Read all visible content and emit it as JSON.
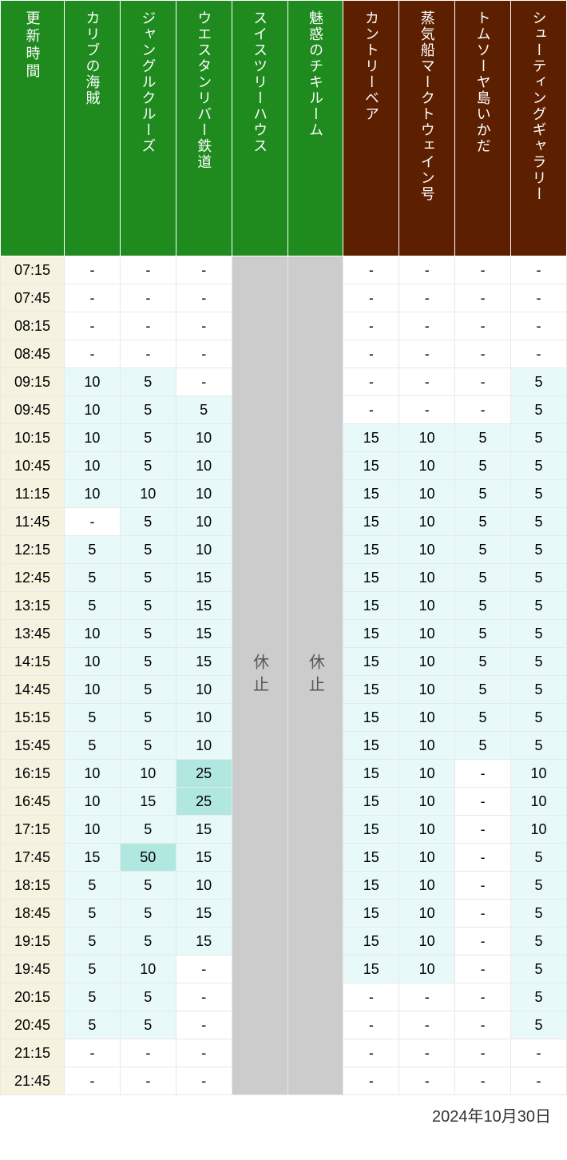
{
  "type": "table",
  "date_label": "2024年10月30日",
  "colors": {
    "green_header": "#1f8b1f",
    "brown_header": "#5c1f00",
    "time_bg": "#f5f3e0",
    "closed_bg": "#cccccc",
    "data_white": "#ffffff",
    "data_light": "#e8f9f9",
    "data_medium": "#b0e8e0",
    "border": "#e8e8e8"
  },
  "headers": [
    {
      "label": "更新時間",
      "color": "green",
      "is_time": true
    },
    {
      "label": "カリブの海賊",
      "color": "green"
    },
    {
      "label": "ジャングルクルーズ",
      "color": "green"
    },
    {
      "label": "ウエスタンリバー鉄道",
      "color": "green"
    },
    {
      "label": "スイスツリーハウス",
      "color": "green"
    },
    {
      "label": "魅惑のチキルーム",
      "color": "green"
    },
    {
      "label": "カントリーベア",
      "color": "brown"
    },
    {
      "label": "蒸気船マークトウェイン号",
      "color": "brown"
    },
    {
      "label": "トムソーヤ島いかだ",
      "color": "brown"
    },
    {
      "label": "シューティングギャラリー",
      "color": "brown"
    }
  ],
  "closed_label": "休止",
  "closed_columns": [
    4,
    5
  ],
  "times": [
    "07:15",
    "07:45",
    "08:15",
    "08:45",
    "09:15",
    "09:45",
    "10:15",
    "10:45",
    "11:15",
    "11:45",
    "12:15",
    "12:45",
    "13:15",
    "13:45",
    "14:15",
    "14:45",
    "15:15",
    "15:45",
    "16:15",
    "16:45",
    "17:15",
    "17:45",
    "18:15",
    "18:45",
    "19:15",
    "19:45",
    "20:15",
    "20:45",
    "21:15",
    "21:45"
  ],
  "data": [
    [
      "-",
      "-",
      "-",
      null,
      null,
      "-",
      "-",
      "-",
      "-"
    ],
    [
      "-",
      "-",
      "-",
      null,
      null,
      "-",
      "-",
      "-",
      "-"
    ],
    [
      "-",
      "-",
      "-",
      null,
      null,
      "-",
      "-",
      "-",
      "-"
    ],
    [
      "-",
      "-",
      "-",
      null,
      null,
      "-",
      "-",
      "-",
      "-"
    ],
    [
      "10",
      "5",
      "-",
      null,
      null,
      "-",
      "-",
      "-",
      "5"
    ],
    [
      "10",
      "5",
      "5",
      null,
      null,
      "-",
      "-",
      "-",
      "5"
    ],
    [
      "10",
      "5",
      "10",
      null,
      null,
      "15",
      "10",
      "5",
      "5"
    ],
    [
      "10",
      "5",
      "10",
      null,
      null,
      "15",
      "10",
      "5",
      "5"
    ],
    [
      "10",
      "10",
      "10",
      null,
      null,
      "15",
      "10",
      "5",
      "5"
    ],
    [
      "-",
      "5",
      "10",
      null,
      null,
      "15",
      "10",
      "5",
      "5"
    ],
    [
      "5",
      "5",
      "10",
      null,
      null,
      "15",
      "10",
      "5",
      "5"
    ],
    [
      "5",
      "5",
      "15",
      null,
      null,
      "15",
      "10",
      "5",
      "5"
    ],
    [
      "5",
      "5",
      "15",
      null,
      null,
      "15",
      "10",
      "5",
      "5"
    ],
    [
      "10",
      "5",
      "15",
      null,
      null,
      "15",
      "10",
      "5",
      "5"
    ],
    [
      "10",
      "5",
      "15",
      null,
      null,
      "15",
      "10",
      "5",
      "5"
    ],
    [
      "10",
      "5",
      "10",
      null,
      null,
      "15",
      "10",
      "5",
      "5"
    ],
    [
      "5",
      "5",
      "10",
      null,
      null,
      "15",
      "10",
      "5",
      "5"
    ],
    [
      "5",
      "5",
      "10",
      null,
      null,
      "15",
      "10",
      "5",
      "5"
    ],
    [
      "10",
      "10",
      "25",
      null,
      null,
      "15",
      "10",
      "-",
      "10"
    ],
    [
      "10",
      "15",
      "25",
      null,
      null,
      "15",
      "10",
      "-",
      "10"
    ],
    [
      "10",
      "5",
      "15",
      null,
      null,
      "15",
      "10",
      "-",
      "10"
    ],
    [
      "15",
      "50",
      "15",
      null,
      null,
      "15",
      "10",
      "-",
      "5"
    ],
    [
      "5",
      "5",
      "10",
      null,
      null,
      "15",
      "10",
      "-",
      "5"
    ],
    [
      "5",
      "5",
      "15",
      null,
      null,
      "15",
      "10",
      "-",
      "5"
    ],
    [
      "5",
      "5",
      "15",
      null,
      null,
      "15",
      "10",
      "-",
      "5"
    ],
    [
      "5",
      "10",
      "-",
      null,
      null,
      "15",
      "10",
      "-",
      "5"
    ],
    [
      "5",
      "5",
      "-",
      null,
      null,
      "-",
      "-",
      "-",
      "5"
    ],
    [
      "5",
      "5",
      "-",
      null,
      null,
      "-",
      "-",
      "-",
      "5"
    ],
    [
      "-",
      "-",
      "-",
      null,
      null,
      "-",
      "-",
      "-",
      "-"
    ],
    [
      "-",
      "-",
      "-",
      null,
      null,
      "-",
      "-",
      "-",
      "-"
    ]
  ],
  "cell_thresholds": {
    "light_min": 5,
    "medium_min": 25
  }
}
